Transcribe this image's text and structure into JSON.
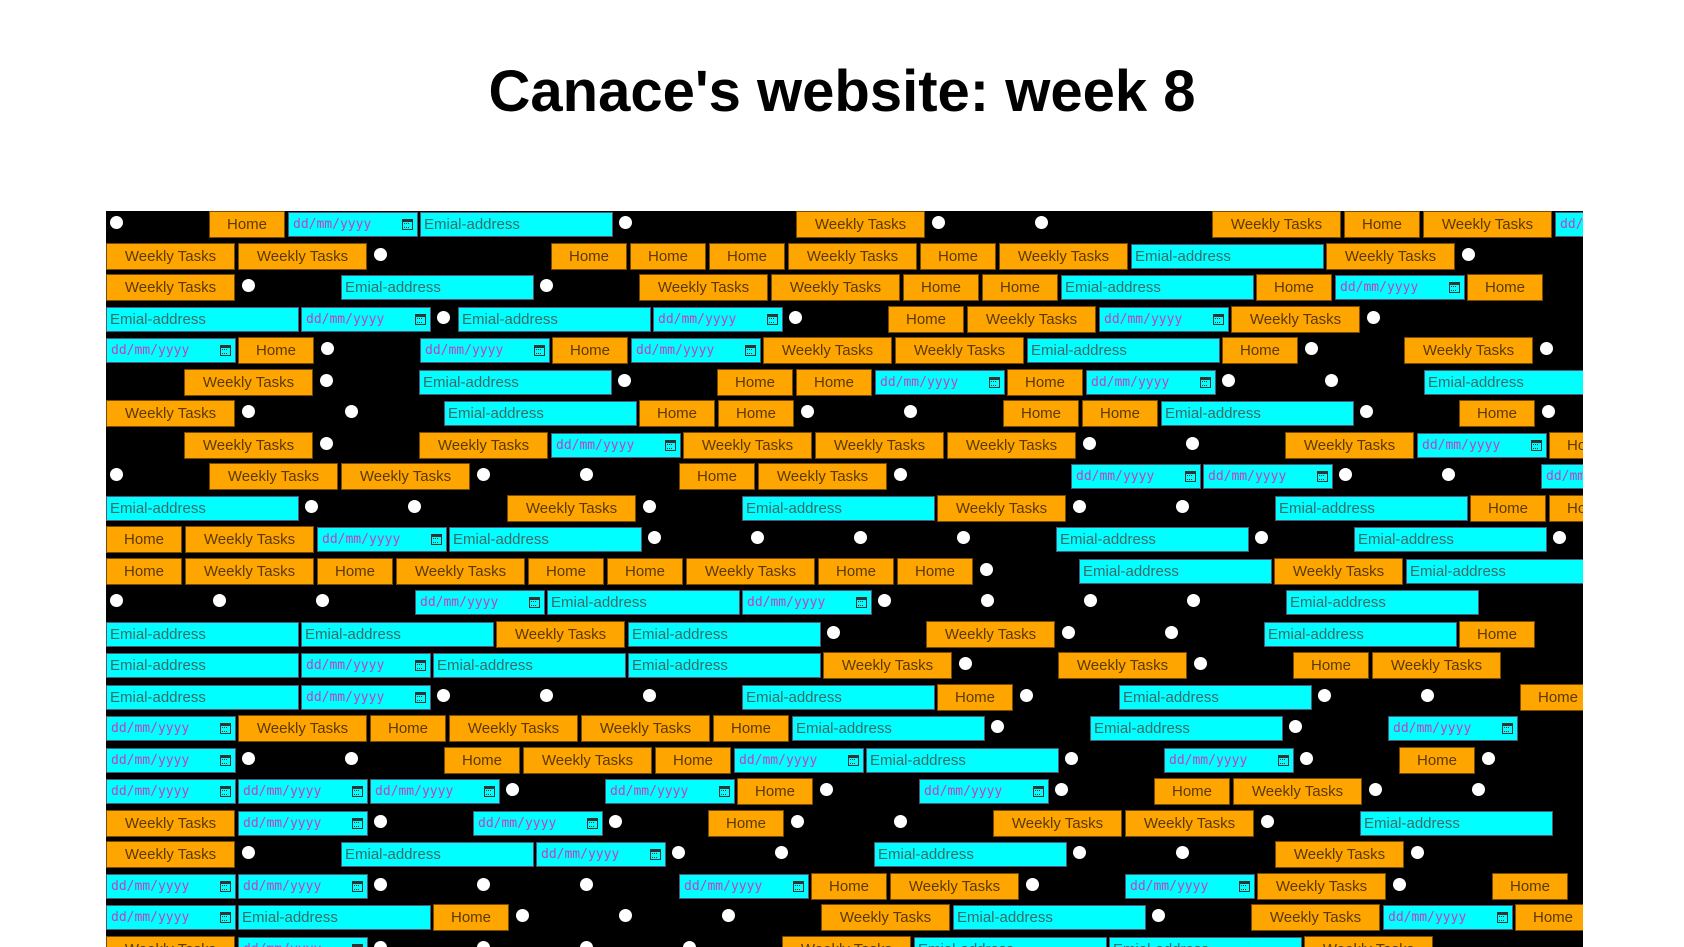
{
  "page": {
    "title": "Canace's website: week 8"
  },
  "labels": {
    "home": "Home",
    "weekly": "Weekly Tasks",
    "email_placeholder": "Emial-address",
    "date_placeholder": "dd/mm/yyyy"
  },
  "icons": {
    "date": "calendar-icon",
    "radio": "radio-circle"
  },
  "colors": {
    "button_bg": "#ffa500",
    "input_bg": "#00ffff",
    "panel_bg": "#000000"
  },
  "rows": [
    "r _ H D E r _ _ W r _ r _ _ W H W D",
    "W W r _ _ H H H W H W E W r",
    "W r _ E r _ W W H H E H D H",
    "E D r E D r _ H W D W r",
    "D H r _ D H D W W E H r _ W r",
    "_ W r _ E r _ H H D H D r _ r _ E",
    "W r _ r _ E H H r _ r _ H H E r _ H r",
    "_ W r _ W D W W W r _ r _ W D H",
    "r _ W W r _ r _ H W r _ _ D D r _ r _ D",
    "E r _ r _ W r _ E W r _ r _ E H H",
    "H W D E r _ r _ r _ r _ E r _ E r",
    "H W H W H H W H H r _ E W E",
    "r _ r _ r _ D E D r _ r _ r _ r _ E",
    "E E W E r _ W r _ r _ E H",
    "E D E E W r _ W r _ H W",
    "E D r _ r _ r _ E H r _ E r _ r _ H",
    "D W H W W H E r _ E r _ D",
    "D r _ r _ H W H D E r _ D r _ H r",
    "D D D r _ D H r _ D r _ H W r _ r",
    "W D r _ D r _ H r _ r _ W W r _ E",
    "W r _ E D r _ r _ E r _ r _ W r",
    "D D r _ r _ r _ D H W r _ D W r _ H",
    "D E H r _ r _ r _ W E r _ W D H",
    "W D r _ r _ r _ r _ W E E W"
  ]
}
